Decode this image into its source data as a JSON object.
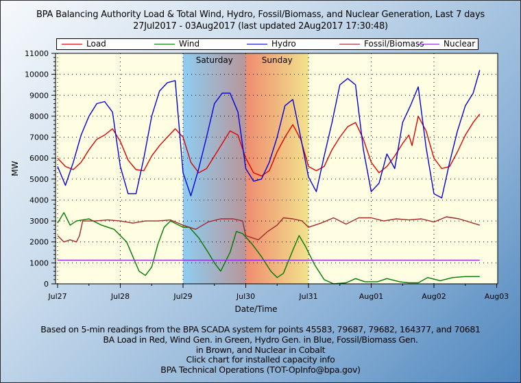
{
  "title_line1": "BPA Balancing Authority Load & Total Wind, Hydro, Fossil/Biomass, and Nuclear Generation, Last 7 days",
  "title_line2": "27Jul2017 - 03Aug2017 (last updated 2Aug2017 17:30:48)",
  "footer": [
    "Based on 5-min readings from the BPA SCADA system for points 45583, 79687, 79682, 164377, and 70681",
    "BA Load in Red, Wind Gen. in Green, Hydro Gen. in Blue, Fossil/Biomass Gen.",
    "in Brown, and Nuclear in Cobalt",
    "Click chart for installed capacity info",
    "BPA Technical Operations (TOT-OpInfo@bpa.gov)"
  ],
  "chart_data": {
    "type": "line",
    "title": "BPA Balancing Authority Load & Total Wind, Hydro, Fossil/Biomass, and Nuclear Generation, Last 7 days",
    "subtitle": "27Jul2017 - 03Aug2017 (last updated 2Aug2017 17:30:48)",
    "xlabel": "Date/Time",
    "ylabel": "MW",
    "x_unit": "days since Jul27 00:00",
    "xlim": [
      0,
      7
    ],
    "ylim": [
      0,
      11000
    ],
    "x_ticks": [
      {
        "value": 0,
        "label": "Jul27"
      },
      {
        "value": 1,
        "label": "Jul28"
      },
      {
        "value": 2,
        "label": "Jul29"
      },
      {
        "value": 3,
        "label": "Jul30"
      },
      {
        "value": 4,
        "label": "Jul31"
      },
      {
        "value": 5,
        "label": "Aug01"
      },
      {
        "value": 6,
        "label": "Aug02"
      },
      {
        "value": 7,
        "label": "Aug03"
      }
    ],
    "y_ticks": [
      0,
      1000,
      2000,
      3000,
      4000,
      5000,
      6000,
      7000,
      8000,
      9000,
      10000,
      11000
    ],
    "grid": true,
    "legend_position": "top",
    "weekend_bands": [
      {
        "label": "Saturday",
        "start": 2,
        "end": 3,
        "color_start": "#8ecdf2",
        "color_end": "#b8969a"
      },
      {
        "label": "Sunday",
        "start": 3,
        "end": 4,
        "color_start": "#ef8c70",
        "color_end": "#f2e28e"
      }
    ],
    "plot_background": "#fffee2",
    "series": [
      {
        "name": "Load",
        "color": "#e00000",
        "x": [
          0,
          0.125,
          0.25,
          0.375,
          0.5,
          0.625,
          0.75,
          0.875,
          1,
          1.125,
          1.25,
          1.375,
          1.5,
          1.625,
          1.75,
          1.875,
          2,
          2.125,
          2.25,
          2.375,
          2.5,
          2.625,
          2.75,
          2.875,
          3,
          3.125,
          3.25,
          3.375,
          3.5,
          3.625,
          3.75,
          3.875,
          4,
          4.125,
          4.25,
          4.375,
          4.5,
          4.625,
          4.75,
          4.875,
          5,
          5.125,
          5.25,
          5.375,
          5.5,
          5.6,
          5.65,
          5.75,
          5.875,
          6,
          6.125,
          6.25,
          6.375,
          6.5,
          6.625,
          6.73
        ],
        "values": [
          6000,
          5600,
          5450,
          5800,
          6400,
          6900,
          7100,
          7400,
          6800,
          5900,
          5450,
          5400,
          6100,
          6600,
          7000,
          7400,
          7000,
          5800,
          5300,
          5500,
          6100,
          6700,
          7300,
          7100,
          6000,
          5300,
          5150,
          5400,
          6300,
          7000,
          7600,
          6900,
          5600,
          5400,
          5600,
          6400,
          7000,
          7500,
          7700,
          6900,
          5800,
          5300,
          5600,
          6100,
          6700,
          7100,
          6600,
          8000,
          7300,
          6000,
          5500,
          5600,
          6300,
          7100,
          7700,
          8100
        ]
      },
      {
        "name": "Wind",
        "color": "#007800",
        "x": [
          0,
          0.1,
          0.2,
          0.3,
          0.5,
          0.7,
          0.9,
          1.1,
          1.2,
          1.3,
          1.4,
          1.5,
          1.6,
          1.7,
          1.8,
          2,
          2.1,
          2.25,
          2.4,
          2.5,
          2.6,
          2.75,
          2.85,
          2.95,
          3.1,
          3.25,
          3.4,
          3.5,
          3.6,
          3.75,
          3.85,
          3.95,
          4.1,
          4.25,
          4.4,
          4.6,
          4.75,
          4.9,
          5.1,
          5.25,
          5.45,
          5.6,
          5.75,
          5.9,
          6.1,
          6.3,
          6.5,
          6.73
        ],
        "values": [
          2900,
          3400,
          2800,
          3000,
          3100,
          2800,
          2600,
          2000,
          1300,
          600,
          400,
          800,
          1900,
          2700,
          3000,
          2700,
          2700,
          2200,
          1500,
          1000,
          600,
          1500,
          2500,
          2400,
          1900,
          1300,
          600,
          300,
          500,
          1600,
          2300,
          1800,
          900,
          200,
          0,
          50,
          250,
          100,
          100,
          250,
          100,
          50,
          50,
          300,
          150,
          300,
          350,
          350
        ]
      },
      {
        "name": "Hydro",
        "color": "#0000e0",
        "x": [
          0,
          0.125,
          0.25,
          0.375,
          0.5,
          0.625,
          0.75,
          0.875,
          1,
          1.125,
          1.25,
          1.375,
          1.5,
          1.625,
          1.75,
          1.875,
          2,
          2.125,
          2.25,
          2.375,
          2.5,
          2.625,
          2.75,
          2.875,
          3,
          3.125,
          3.25,
          3.375,
          3.5,
          3.625,
          3.75,
          3.875,
          4,
          4.125,
          4.25,
          4.375,
          4.5,
          4.625,
          4.75,
          4.875,
          5,
          5.125,
          5.25,
          5.375,
          5.5,
          5.625,
          5.75,
          5.875,
          6,
          6.125,
          6.25,
          6.375,
          6.5,
          6.625,
          6.73
        ],
        "values": [
          5600,
          4700,
          5800,
          7100,
          8000,
          8600,
          8700,
          8200,
          5600,
          4300,
          4300,
          6000,
          8000,
          9200,
          9600,
          9700,
          5300,
          4200,
          5500,
          7000,
          8600,
          9100,
          9100,
          8200,
          5500,
          4900,
          5000,
          5800,
          7000,
          8500,
          8800,
          7000,
          5100,
          4400,
          6100,
          7700,
          9500,
          9800,
          9500,
          6400,
          4400,
          4800,
          6200,
          5500,
          7700,
          8500,
          9400,
          6500,
          4300,
          4100,
          5800,
          7300,
          8500,
          9100,
          10200
        ]
      },
      {
        "name": "Fossil/Biomass",
        "color": "#a02828",
        "x": [
          0,
          0.1,
          0.2,
          0.3,
          0.35,
          0.4,
          0.6,
          0.8,
          1,
          1.2,
          1.4,
          1.6,
          1.8,
          2,
          2.2,
          2.4,
          2.6,
          2.8,
          2.95,
          3,
          3.2,
          3.35,
          3.5,
          3.6,
          3.75,
          3.9,
          4,
          4.2,
          4.4,
          4.6,
          4.8,
          5,
          5.2,
          5.4,
          5.6,
          5.8,
          6,
          6.2,
          6.4,
          6.73
        ],
        "values": [
          2300,
          2000,
          2100,
          2000,
          2300,
          3000,
          3000,
          3050,
          3000,
          2900,
          3000,
          3000,
          3050,
          2800,
          2600,
          2950,
          3100,
          3100,
          3000,
          2300,
          2100,
          2500,
          2800,
          3150,
          3100,
          3000,
          2700,
          2900,
          3150,
          2850,
          3150,
          3150,
          3000,
          3100,
          3050,
          3100,
          2950,
          3200,
          3100,
          2800
        ]
      },
      {
        "name": "Nuclear",
        "color": "#8a2be2",
        "x": [
          0,
          6.73
        ],
        "values": [
          1130,
          1130
        ]
      }
    ]
  }
}
